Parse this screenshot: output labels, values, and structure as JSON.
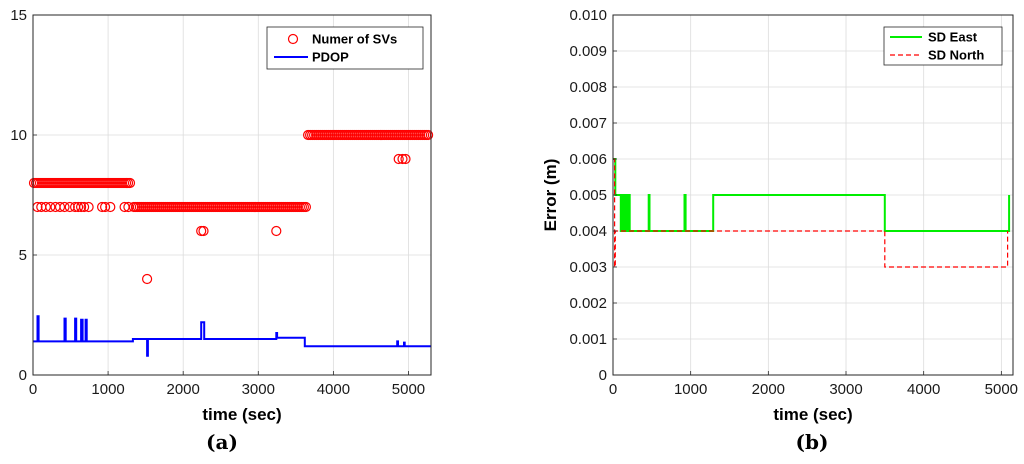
{
  "figure": {
    "caption_a": "(a)",
    "caption_b": "(b)"
  },
  "chart_data": [
    {
      "type": "line",
      "panel": "(a)",
      "xlabel": "time (sec)",
      "ylabel": "",
      "xlim": [
        0,
        5300
      ],
      "ylim": [
        0,
        15
      ],
      "xticks": [
        0,
        1000,
        2000,
        3000,
        4000,
        5000
      ],
      "yticks": [
        0,
        5,
        10,
        15
      ],
      "grid": true,
      "legend_position": "top-right",
      "series": [
        {
          "name": "Numer of SVs",
          "kind": "scatter",
          "marker": "open-circle",
          "color": "#ff0000",
          "segments": [
            {
              "x_start": 0,
              "x_end": 1330,
              "value": 8
            },
            {
              "x_start": 1330,
              "x_end": 3650,
              "value": 7
            },
            {
              "x_start": 3650,
              "x_end": 5300,
              "value": 10
            }
          ],
          "points": [
            [
              60,
              7
            ],
            [
              110,
              7
            ],
            [
              170,
              7
            ],
            [
              230,
              7
            ],
            [
              300,
              7
            ],
            [
              360,
              7
            ],
            [
              420,
              7
            ],
            [
              490,
              7
            ],
            [
              560,
              7
            ],
            [
              600,
              7
            ],
            [
              640,
              7
            ],
            [
              680,
              7
            ],
            [
              740,
              7
            ],
            [
              920,
              7
            ],
            [
              960,
              7
            ],
            [
              1030,
              7
            ],
            [
              1220,
              7
            ],
            [
              1270,
              7
            ],
            [
              2240,
              6
            ],
            [
              2270,
              6
            ],
            [
              3240,
              6
            ],
            [
              1520,
              4
            ],
            [
              4870,
              9
            ],
            [
              4920,
              9
            ],
            [
              4960,
              9
            ]
          ]
        },
        {
          "name": "PDOP",
          "kind": "line",
          "color": "#0000ff",
          "points": [
            [
              0,
              1.4
            ],
            [
              60,
              1.4
            ],
            [
              60,
              2.45
            ],
            [
              75,
              2.45
            ],
            [
              75,
              1.4
            ],
            [
              420,
              1.4
            ],
            [
              420,
              2.35
            ],
            [
              435,
              2.35
            ],
            [
              435,
              1.4
            ],
            [
              560,
              1.4
            ],
            [
              560,
              2.35
            ],
            [
              575,
              2.35
            ],
            [
              575,
              1.4
            ],
            [
              640,
              1.4
            ],
            [
              640,
              2.3
            ],
            [
              660,
              2.3
            ],
            [
              660,
              1.4
            ],
            [
              700,
              1.4
            ],
            [
              700,
              2.3
            ],
            [
              715,
              2.3
            ],
            [
              715,
              1.4
            ],
            [
              1330,
              1.4
            ],
            [
              1330,
              1.5
            ],
            [
              1520,
              1.5
            ],
            [
              1520,
              0.8
            ],
            [
              1530,
              0.8
            ],
            [
              1530,
              1.5
            ],
            [
              2240,
              1.5
            ],
            [
              2240,
              2.2
            ],
            [
              2280,
              2.2
            ],
            [
              2280,
              1.5
            ],
            [
              3240,
              1.5
            ],
            [
              3240,
              1.75
            ],
            [
              3250,
              1.75
            ],
            [
              3250,
              1.55
            ],
            [
              3620,
              1.55
            ],
            [
              3620,
              1.2
            ],
            [
              4850,
              1.2
            ],
            [
              4850,
              1.4
            ],
            [
              4860,
              1.4
            ],
            [
              4860,
              1.2
            ],
            [
              4940,
              1.2
            ],
            [
              4940,
              1.35
            ],
            [
              4950,
              1.35
            ],
            [
              4950,
              1.2
            ],
            [
              5300,
              1.2
            ]
          ]
        }
      ]
    },
    {
      "type": "line",
      "panel": "(b)",
      "xlabel": "time (sec)",
      "ylabel": "Error (m)",
      "xlim": [
        0,
        5150
      ],
      "ylim": [
        0,
        0.01
      ],
      "xticks": [
        0,
        1000,
        2000,
        3000,
        4000,
        5000
      ],
      "yticks": [
        0,
        0.001,
        0.002,
        0.003,
        0.004,
        0.005,
        0.006,
        0.007,
        0.008,
        0.009,
        0.01
      ],
      "grid": true,
      "legend_position": "top-right",
      "series": [
        {
          "name": "SD East",
          "kind": "line",
          "style": "solid",
          "color": "#00ee00",
          "points": [
            [
              0,
              0.006
            ],
            [
              30,
              0.006
            ],
            [
              30,
              0.005
            ],
            [
              100,
              0.005
            ],
            [
              100,
              0.004
            ],
            [
              120,
              0.004
            ],
            [
              120,
              0.005
            ],
            [
              140,
              0.005
            ],
            [
              140,
              0.004
            ],
            [
              160,
              0.004
            ],
            [
              160,
              0.005
            ],
            [
              175,
              0.005
            ],
            [
              175,
              0.004
            ],
            [
              200,
              0.004
            ],
            [
              200,
              0.005
            ],
            [
              215,
              0.005
            ],
            [
              215,
              0.004
            ],
            [
              460,
              0.004
            ],
            [
              460,
              0.005
            ],
            [
              470,
              0.005
            ],
            [
              470,
              0.004
            ],
            [
              920,
              0.004
            ],
            [
              920,
              0.005
            ],
            [
              935,
              0.005
            ],
            [
              935,
              0.004
            ],
            [
              1290,
              0.004
            ],
            [
              1290,
              0.005
            ],
            [
              3500,
              0.005
            ],
            [
              3500,
              0.004
            ],
            [
              5100,
              0.004
            ],
            [
              5100,
              0.005
            ]
          ]
        },
        {
          "name": "SD North",
          "kind": "line",
          "style": "dashed",
          "color": "#ff0000",
          "points": [
            [
              0,
              0.006
            ],
            [
              20,
              0.006
            ],
            [
              20,
              0.003
            ],
            [
              30,
              0.003
            ],
            [
              30,
              0.004
            ],
            [
              3500,
              0.004
            ],
            [
              3500,
              0.003
            ],
            [
              5080,
              0.003
            ],
            [
              5080,
              0.004
            ]
          ]
        }
      ]
    }
  ]
}
